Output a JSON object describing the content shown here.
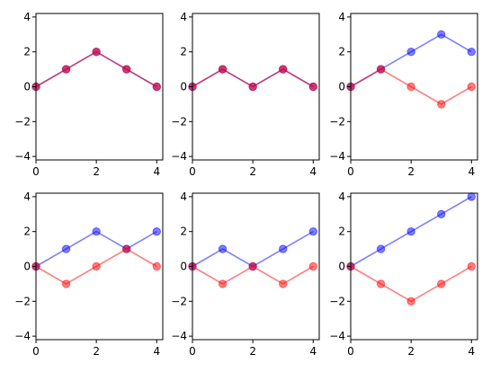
{
  "figure": {
    "layout": "2x3 grid of line plots",
    "series_colors": {
      "blue": "#0000ff",
      "red": "#ff0000"
    },
    "series_alpha": 0.5
  },
  "chart_data": [
    {
      "type": "line",
      "x": [
        0,
        1,
        2,
        3,
        4
      ],
      "xlim": [
        0,
        4.2
      ],
      "ylim": [
        -4.2,
        4.2
      ],
      "xticks": [
        "0",
        "2",
        "4"
      ],
      "yticks": [
        "-4",
        "-2",
        "0",
        "2",
        "4"
      ],
      "series": [
        {
          "color": "#0000ff",
          "values": [
            0,
            1,
            2,
            1,
            0
          ]
        },
        {
          "color": "#ff0000",
          "values": [
            0,
            1,
            2,
            1,
            0
          ]
        }
      ]
    },
    {
      "type": "line",
      "x": [
        0,
        1,
        2,
        3,
        4
      ],
      "xlim": [
        0,
        4.2
      ],
      "ylim": [
        -4.2,
        4.2
      ],
      "xticks": [
        "0",
        "2",
        "4"
      ],
      "yticks": [
        "-4",
        "-2",
        "0",
        "2",
        "4"
      ],
      "series": [
        {
          "color": "#0000ff",
          "values": [
            0,
            1,
            0,
            1,
            0
          ]
        },
        {
          "color": "#ff0000",
          "values": [
            0,
            1,
            0,
            1,
            0
          ]
        }
      ]
    },
    {
      "type": "line",
      "x": [
        0,
        1,
        2,
        3,
        4
      ],
      "xlim": [
        0,
        4.2
      ],
      "ylim": [
        -4.2,
        4.2
      ],
      "xticks": [
        "0",
        "2",
        "4"
      ],
      "yticks": [
        "-4",
        "-2",
        "0",
        "2",
        "4"
      ],
      "series": [
        {
          "color": "#0000ff",
          "values": [
            0,
            1,
            2,
            3,
            2
          ]
        },
        {
          "color": "#ff0000",
          "values": [
            0,
            1,
            0,
            -1,
            0
          ]
        }
      ]
    },
    {
      "type": "line",
      "x": [
        0,
        1,
        2,
        3,
        4
      ],
      "xlim": [
        0,
        4.2
      ],
      "ylim": [
        -4.2,
        4.2
      ],
      "xticks": [
        "0",
        "2",
        "4"
      ],
      "yticks": [
        "-4",
        "-2",
        "0",
        "2",
        "4"
      ],
      "series": [
        {
          "color": "#0000ff",
          "values": [
            0,
            1,
            2,
            1,
            2
          ]
        },
        {
          "color": "#ff0000",
          "values": [
            0,
            -1,
            0,
            1,
            0
          ]
        }
      ]
    },
    {
      "type": "line",
      "x": [
        0,
        1,
        2,
        3,
        4
      ],
      "xlim": [
        0,
        4.2
      ],
      "ylim": [
        -4.2,
        4.2
      ],
      "xticks": [
        "0",
        "2",
        "4"
      ],
      "yticks": [
        "-4",
        "-2",
        "0",
        "2",
        "4"
      ],
      "series": [
        {
          "color": "#0000ff",
          "values": [
            0,
            1,
            0,
            1,
            2
          ]
        },
        {
          "color": "#ff0000",
          "values": [
            0,
            -1,
            0,
            -1,
            0
          ]
        }
      ]
    },
    {
      "type": "line",
      "x": [
        0,
        1,
        2,
        3,
        4
      ],
      "xlim": [
        0,
        4.2
      ],
      "ylim": [
        -4.2,
        4.2
      ],
      "xticks": [
        "0",
        "2",
        "4"
      ],
      "yticks": [
        "-4",
        "-2",
        "0",
        "2",
        "4"
      ],
      "series": [
        {
          "color": "#0000ff",
          "values": [
            0,
            1,
            2,
            3,
            4
          ]
        },
        {
          "color": "#ff0000",
          "values": [
            0,
            -1,
            -2,
            -1,
            0
          ]
        }
      ]
    }
  ]
}
